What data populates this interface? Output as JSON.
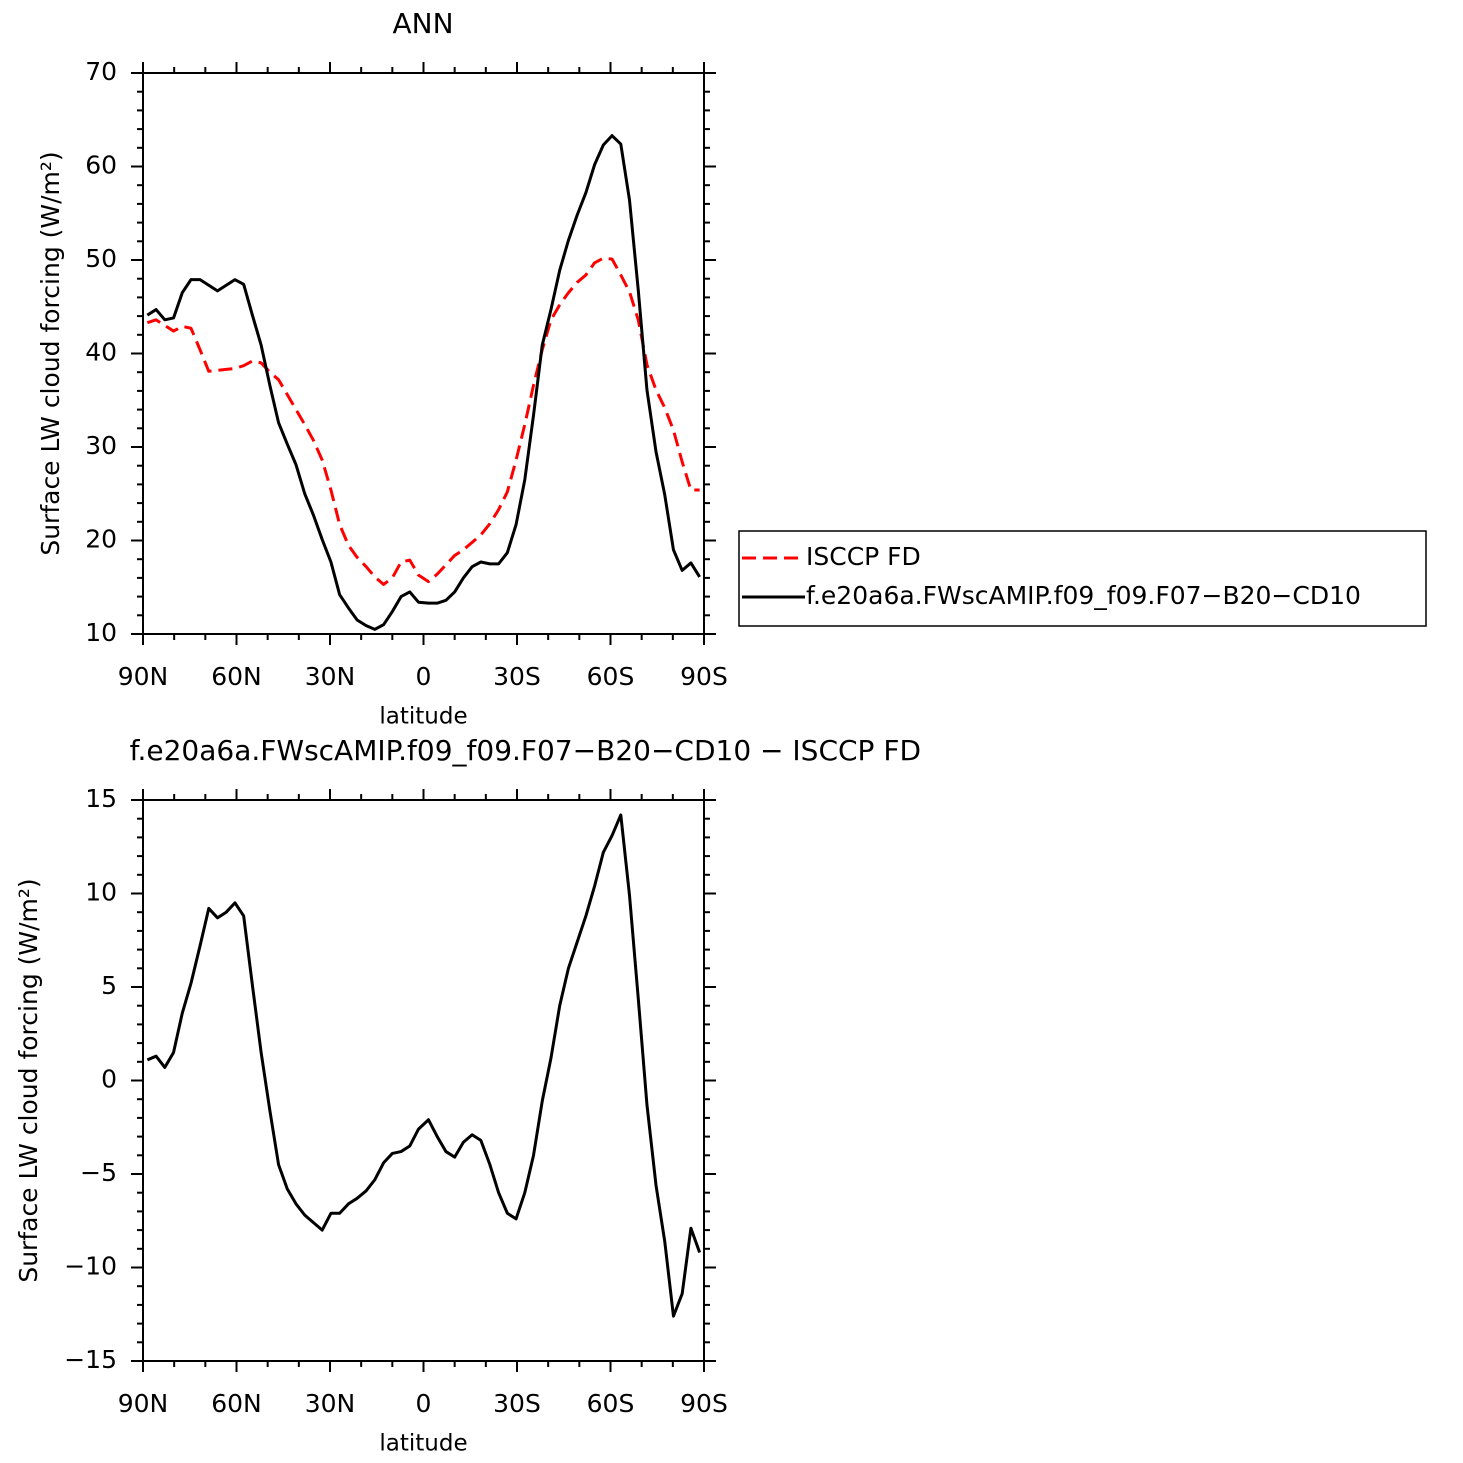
{
  "chart_data": [
    {
      "type": "line",
      "title": "ANN",
      "x_label": "latitude",
      "y_label": "Surface LW cloud forcing (W/m²)",
      "xlim": [
        90,
        -90
      ],
      "xticks": [
        {
          "value": 90,
          "label": "90N"
        },
        {
          "value": 60,
          "label": "60N"
        },
        {
          "value": 30,
          "label": "30N"
        },
        0,
        {
          "value": -30,
          "label": "30S"
        },
        {
          "value": -60,
          "label": "60S"
        },
        {
          "value": -90,
          "label": "90S"
        }
      ],
      "ylim": [
        10,
        70
      ],
      "yticks": [
        10,
        20,
        30,
        40,
        50,
        60,
        70
      ],
      "legend": "right",
      "x": [
        88.6,
        85.8,
        83.0,
        80.2,
        77.4,
        74.6,
        71.7,
        68.9,
        66.1,
        63.3,
        60.5,
        57.7,
        54.9,
        52.1,
        49.3,
        46.5,
        43.7,
        40.9,
        38.1,
        35.3,
        32.5,
        29.7,
        26.9,
        24.1,
        21.3,
        18.4,
        15.6,
        12.8,
        10.0,
        7.2,
        4.4,
        1.6,
        -1.6,
        -4.4,
        -7.2,
        -10.0,
        -12.8,
        -15.6,
        -18.4,
        -21.3,
        -24.1,
        -26.9,
        -29.7,
        -32.5,
        -35.3,
        -38.1,
        -40.9,
        -43.7,
        -46.5,
        -49.3,
        -52.1,
        -54.9,
        -57.7,
        -60.5,
        -63.3,
        -66.1,
        -68.9,
        -71.7,
        -74.6,
        -77.4,
        -80.2,
        -83.0,
        -85.8,
        -88.6
      ],
      "series": [
        {
          "name": "ISCCP FD",
          "color": "#ff0000",
          "style": "dashed",
          "values": [
            43.3,
            43.6,
            43.0,
            42.4,
            42.9,
            42.7,
            40.4,
            38.1,
            38.2,
            38.3,
            38.4,
            38.7,
            39.2,
            39.0,
            38.0,
            37.2,
            35.6,
            34.0,
            32.4,
            30.7,
            28.6,
            25.4,
            21.7,
            19.5,
            18.2,
            17.2,
            16.1,
            15.3,
            16.0,
            17.7,
            17.9,
            16.3,
            15.6,
            16.4,
            17.4,
            18.4,
            19.0,
            19.8,
            20.6,
            21.8,
            23.3,
            25.2,
            28.6,
            32.4,
            36.6,
            40.4,
            43.6,
            45.2,
            46.5,
            47.6,
            48.4,
            49.7,
            50.2,
            50.1,
            48.4,
            46.6,
            43.6,
            38.8,
            36.1,
            34.2,
            31.8,
            28.4,
            25.4,
            25.4
          ]
        },
        {
          "name": "f.e20a6a.FWscAMIP.f09_f09.F07−B20−CD10",
          "color": "#000000",
          "style": "solid",
          "values": [
            44.1,
            44.7,
            43.6,
            43.8,
            46.5,
            47.9,
            47.9,
            47.3,
            46.7,
            47.3,
            47.9,
            47.4,
            44.1,
            40.9,
            36.6,
            32.6,
            30.3,
            28.1,
            25.0,
            22.7,
            20.1,
            17.7,
            14.2,
            12.8,
            11.5,
            10.9,
            10.5,
            11.0,
            12.4,
            14.0,
            14.5,
            13.4,
            13.3,
            13.3,
            13.6,
            14.5,
            16.0,
            17.2,
            17.7,
            17.5,
            17.5,
            18.7,
            21.7,
            26.5,
            33.4,
            40.9,
            44.7,
            48.9,
            52.1,
            54.8,
            57.2,
            60.2,
            62.3,
            63.3,
            62.4,
            56.4,
            46.8,
            36.1,
            29.5,
            24.9,
            19.0,
            16.8,
            17.6,
            16.1
          ]
        }
      ]
    },
    {
      "type": "line",
      "title": "f.e20a6a.FWscAMIP.f09_f09.F07−B20−CD10  −  ISCCP FD",
      "x_label": "latitude",
      "y_label": "Surface LW cloud forcing (W/m²)",
      "xlim": [
        90,
        -90
      ],
      "xticks": [
        {
          "value": 90,
          "label": "90N"
        },
        {
          "value": 60,
          "label": "60N"
        },
        {
          "value": 30,
          "label": "30N"
        },
        0,
        {
          "value": -30,
          "label": "30S"
        },
        {
          "value": -60,
          "label": "60S"
        },
        {
          "value": -90,
          "label": "90S"
        }
      ],
      "ylim": [
        -15,
        15
      ],
      "yticks": [
        {
          "value": -15,
          "label": "−15"
        },
        {
          "value": -10,
          "label": "−10"
        },
        {
          "value": -5,
          "label": "−5"
        },
        0,
        5,
        10,
        15
      ],
      "x": [
        88.6,
        85.8,
        83.0,
        80.2,
        77.4,
        74.6,
        71.7,
        68.9,
        66.1,
        63.3,
        60.5,
        57.7,
        54.9,
        52.1,
        49.3,
        46.5,
        43.7,
        40.9,
        38.1,
        35.3,
        32.5,
        29.7,
        26.9,
        24.1,
        21.3,
        18.4,
        15.6,
        12.8,
        10.0,
        7.2,
        4.4,
        1.6,
        -1.6,
        -4.4,
        -7.2,
        -10.0,
        -12.8,
        -15.6,
        -18.4,
        -21.3,
        -24.1,
        -26.9,
        -29.7,
        -32.5,
        -35.3,
        -38.1,
        -40.9,
        -43.7,
        -46.5,
        -49.3,
        -52.1,
        -54.9,
        -57.7,
        -60.5,
        -63.3,
        -66.1,
        -68.9,
        -71.7,
        -74.6,
        -77.4,
        -80.2,
        -83.0,
        -85.8,
        -88.6
      ],
      "series": [
        {
          "color": "#000000",
          "style": "solid",
          "values": [
            1.1,
            1.3,
            0.7,
            1.5,
            3.6,
            5.2,
            7.2,
            9.2,
            8.7,
            9.0,
            9.5,
            8.8,
            5.1,
            1.5,
            -1.6,
            -4.5,
            -5.8,
            -6.6,
            -7.2,
            -7.6,
            -8.0,
            -7.1,
            -7.1,
            -6.6,
            -6.3,
            -5.9,
            -5.3,
            -4.4,
            -3.9,
            -3.8,
            -3.5,
            -2.6,
            -2.1,
            -3.0,
            -3.8,
            -4.1,
            -3.3,
            -2.9,
            -3.2,
            -4.5,
            -6.0,
            -7.1,
            -7.4,
            -6.0,
            -4.0,
            -1.1,
            1.2,
            4.0,
            6.0,
            7.4,
            8.8,
            10.4,
            12.2,
            13.1,
            14.2,
            9.9,
            4.4,
            -1.3,
            -5.6,
            -8.6,
            -12.6,
            -11.4,
            -7.9,
            -9.2
          ]
        }
      ]
    }
  ]
}
